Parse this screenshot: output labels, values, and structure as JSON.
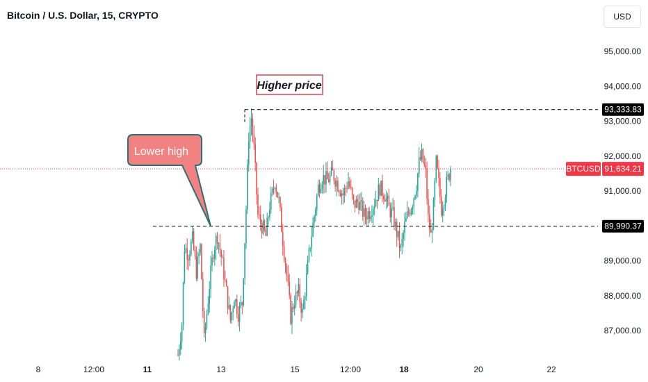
{
  "header": {
    "title": "Bitcoin / U.S. Dollar, 15, CRYPTO",
    "currency": "USD"
  },
  "colors": {
    "up": "#26a69a",
    "down": "#ef5350",
    "annotation_box_fill": "#f28181",
    "annotation_box_stroke": "#2c6f77",
    "higher_price_border": "#d64553",
    "price_label_bg": "#000000",
    "symbol_label_bg": "#f23645"
  },
  "chart_data": {
    "type": "candlestick",
    "symbol": "BTCUSD",
    "ylim": [
      86300,
      96000
    ],
    "y_ticks": [
      {
        "value": 95000,
        "label": "95,000.00"
      },
      {
        "value": 94000,
        "label": "94,000.00"
      },
      {
        "value": 93000,
        "label": "93,000.00"
      },
      {
        "value": 92000,
        "label": "92,000.00"
      },
      {
        "value": 91000,
        "label": "91,000.00"
      },
      {
        "value": 89000,
        "label": "89,000.00"
      },
      {
        "value": 88000,
        "label": "88,000.00"
      },
      {
        "value": 87000,
        "label": "87,000.00"
      }
    ],
    "x_ticks": [
      {
        "label": "8",
        "bold": false
      },
      {
        "label": "12:00",
        "bold": false
      },
      {
        "label": "11",
        "bold": true
      },
      {
        "label": "13",
        "bold": false
      },
      {
        "label": "15",
        "bold": false
      },
      {
        "label": "12:00",
        "bold": false
      },
      {
        "label": "18",
        "bold": true
      },
      {
        "label": "20",
        "bold": false
      },
      {
        "label": "22",
        "bold": false
      }
    ],
    "reference_lines": [
      {
        "value": 93333.83,
        "label": "93,333.83",
        "style": "dashed"
      },
      {
        "value": 89990.37,
        "label": "89,990.37",
        "style": "dashed"
      }
    ],
    "current_price": {
      "value": 91634.21,
      "label": "91,634.21",
      "symbol_label": "BTCUSD"
    },
    "annotations": [
      {
        "text": "Lower high",
        "type": "callout",
        "points_to": 89990.37
      },
      {
        "text": "Higher price",
        "type": "box",
        "near": 93333.83
      }
    ],
    "anchors": [
      [
        0,
        86300
      ],
      [
        3,
        87200
      ],
      [
        5,
        89400
      ],
      [
        8,
        89200
      ],
      [
        11,
        89600
      ],
      [
        14,
        88700
      ],
      [
        17,
        89400
      ],
      [
        20,
        86700
      ],
      [
        24,
        88300
      ],
      [
        27,
        89300
      ],
      [
        30,
        89750
      ],
      [
        34,
        88900
      ],
      [
        37,
        88100
      ],
      [
        40,
        87300
      ],
      [
        43,
        88000
      ],
      [
        46,
        87500
      ],
      [
        49,
        87800
      ],
      [
        52,
        90500
      ],
      [
        54,
        92600
      ],
      [
        56,
        93100
      ],
      [
        58,
        92200
      ],
      [
        61,
        90300
      ],
      [
        64,
        90000
      ],
      [
        67,
        89700
      ],
      [
        70,
        90600
      ],
      [
        72,
        90900
      ],
      [
        74,
        91300
      ],
      [
        77,
        90700
      ],
      [
        80,
        89600
      ],
      [
        83,
        88600
      ],
      [
        86,
        87400
      ],
      [
        89,
        87900
      ],
      [
        92,
        88100
      ],
      [
        95,
        87500
      ],
      [
        98,
        88500
      ],
      [
        101,
        89500
      ],
      [
        104,
        90300
      ],
      [
        107,
        91100
      ],
      [
        110,
        91400
      ],
      [
        114,
        91300
      ],
      [
        118,
        91500
      ],
      [
        122,
        91200
      ],
      [
        126,
        90900
      ],
      [
        130,
        91300
      ],
      [
        134,
        90600
      ],
      [
        138,
        90700
      ],
      [
        142,
        90300
      ],
      [
        146,
        90400
      ],
      [
        150,
        90700
      ],
      [
        154,
        91100
      ],
      [
        158,
        90900
      ],
      [
        161,
        90500
      ],
      [
        164,
        90300
      ],
      [
        167,
        89800
      ],
      [
        170,
        89300
      ],
      [
        173,
        90000
      ],
      [
        176,
        90400
      ],
      [
        179,
        90700
      ],
      [
        182,
        91200
      ],
      [
        184,
        91800
      ],
      [
        186,
        92000
      ],
      [
        189,
        91500
      ],
      [
        191,
        90200
      ],
      [
        193,
        89700
      ],
      [
        195,
        90500
      ],
      [
        197,
        91800
      ],
      [
        199,
        91200
      ],
      [
        201,
        90500
      ],
      [
        203,
        90800
      ],
      [
        205,
        91200
      ],
      [
        207,
        91500
      ],
      [
        208,
        91634.21
      ]
    ]
  }
}
